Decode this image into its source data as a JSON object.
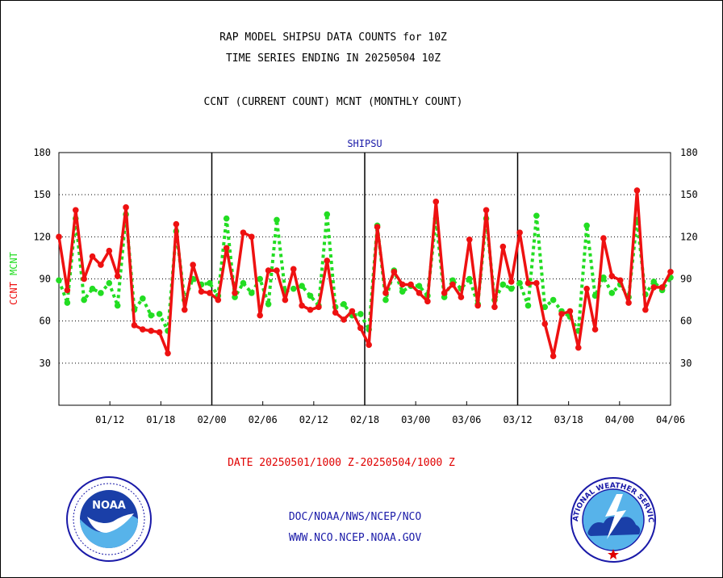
{
  "header": {
    "line1": "RAP MODEL SHIPSU DATA COUNTS for 10Z",
    "line2": "TIME SERIES ENDING IN 20250504 10Z",
    "line3": "CCNT (CURRENT COUNT) MCNT (MONTHLY COUNT)"
  },
  "footer": {
    "date_range": "DATE 20250501/1000 Z-20250504/1000 Z",
    "org": "DOC/NOAA/NWS/NCEP/NCO",
    "url": "WWW.NCO.NCEP.NOAA.GOV"
  },
  "logos": {
    "left": "noaa-logo",
    "left_text": "NOAA",
    "right": "nws-logo",
    "right_text": "NATIONAL WEATHER SERVICE"
  },
  "colors": {
    "ccnt": "#ee1111",
    "mcnt": "#22dd22",
    "title": "#1a1aa8",
    "frame": "#000000"
  },
  "chart_data": {
    "type": "line",
    "title": "SHIPSU",
    "ylabel_parts": [
      "CCNT",
      "MCNT"
    ],
    "ylim": [
      0,
      180
    ],
    "yticks": [
      30,
      60,
      90,
      120,
      150,
      180
    ],
    "xlim": [
      0,
      96
    ],
    "xticks": [
      "01/12",
      "01/18",
      "02/00",
      "02/06",
      "02/12",
      "02/18",
      "03/00",
      "03/06",
      "03/12",
      "03/18",
      "04/00",
      "04/06"
    ],
    "grid": "horizontal dotted",
    "legend": "none",
    "series": [
      {
        "name": "CCNT",
        "style": "solid",
        "values": [
          120,
          82,
          139,
          90,
          106,
          100,
          110,
          92,
          141,
          57,
          54,
          53,
          52,
          37,
          129,
          68,
          100,
          81,
          80,
          75,
          112,
          80,
          123,
          120,
          64,
          96,
          96,
          75,
          97,
          71,
          68,
          70,
          103,
          66,
          61,
          67,
          55,
          43,
          127,
          80,
          95,
          86,
          86,
          80,
          74,
          145,
          80,
          86,
          77,
          118,
          71,
          139,
          70,
          113,
          88,
          123,
          87,
          87,
          58,
          35,
          65,
          67,
          41,
          83,
          54,
          119,
          92,
          89,
          73,
          153,
          68,
          84,
          84,
          95
        ]
      },
      {
        "name": "MCNT",
        "style": "dotted",
        "values": [
          89,
          73,
          133,
          75,
          83,
          80,
          87,
          71,
          136,
          68,
          76,
          64,
          65,
          53,
          124,
          75,
          90,
          86,
          87,
          78,
          133,
          77,
          87,
          80,
          90,
          72,
          132,
          81,
          83,
          85,
          78,
          71,
          136,
          70,
          72,
          64,
          65,
          54,
          128,
          75,
          96,
          81,
          85,
          85,
          78,
          133,
          77,
          89,
          83,
          90,
          72,
          133,
          75,
          86,
          83,
          87,
          71,
          135,
          70,
          75,
          67,
          63,
          53,
          128,
          78,
          91,
          80,
          86,
          77,
          132,
          79,
          88,
          82,
          91
        ]
      }
    ]
  }
}
